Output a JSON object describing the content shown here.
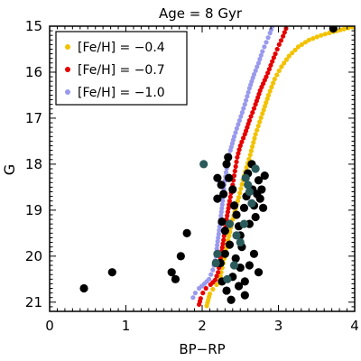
{
  "chart_data": {
    "type": "scatter",
    "title": "Age = 8 Gyr",
    "xlabel": "BP−RP",
    "ylabel": "G",
    "xlim": [
      0,
      4
    ],
    "ylim": [
      21.2,
      15
    ],
    "y_inverted": true,
    "x_ticks": [
      "0",
      "1",
      "2",
      "3",
      "4"
    ],
    "x_tick_values": [
      0,
      1,
      2,
      3,
      4
    ],
    "y_ticks": [
      "15",
      "16",
      "17",
      "18",
      "19",
      "20",
      "21"
    ],
    "y_tick_values": [
      15,
      16,
      17,
      18,
      19,
      20,
      21
    ],
    "legend_position": "top-left",
    "series": [
      {
        "name": "[Fe/H] = −0.4",
        "color": "#f2c200",
        "marker": "small-dot",
        "x": [
          2.06,
          2.08,
          2.1,
          2.14,
          2.19,
          2.23,
          2.25,
          2.29,
          2.34,
          2.4,
          2.48,
          2.55,
          2.63,
          2.7,
          2.79,
          2.87,
          2.95,
          3.04,
          3.14,
          3.26,
          3.4,
          3.56,
          3.72,
          3.86,
          3.97
        ],
        "y": [
          21.08,
          20.95,
          20.82,
          20.72,
          20.62,
          20.52,
          20.35,
          20.05,
          19.65,
          19.2,
          18.72,
          18.25,
          17.8,
          17.35,
          16.9,
          16.5,
          16.15,
          15.88,
          15.65,
          15.45,
          15.3,
          15.2,
          15.12,
          15.06,
          15.02
        ]
      },
      {
        "name": "[Fe/H] = −0.7",
        "color": "#e60000",
        "marker": "small-dot",
        "x": [
          1.96,
          1.98,
          2.01,
          2.05,
          2.11,
          2.17,
          2.21,
          2.24,
          2.28,
          2.32,
          2.36,
          2.4,
          2.43,
          2.46,
          2.5,
          2.56,
          2.62,
          2.7,
          2.76,
          2.84,
          2.9,
          2.96,
          3.01,
          3.06,
          3.1
        ],
        "y": [
          21.05,
          20.92,
          20.8,
          20.7,
          20.62,
          20.52,
          20.35,
          20.05,
          19.65,
          19.2,
          18.8,
          18.45,
          18.15,
          17.85,
          17.6,
          17.35,
          17.05,
          16.7,
          16.4,
          16.1,
          15.85,
          15.6,
          15.4,
          15.22,
          15.05
        ]
      },
      {
        "name": "[Fe/H] = −1.0",
        "color": "#9999ee",
        "marker": "small-dot",
        "x": [
          1.88,
          1.91,
          1.96,
          2.03,
          2.09,
          2.14,
          2.18,
          2.21,
          2.24,
          2.27,
          2.29,
          2.33,
          2.37,
          2.42,
          2.49,
          2.56,
          2.62,
          2.68,
          2.74,
          2.79,
          2.84,
          2.89,
          2.92
        ],
        "y": [
          20.9,
          20.8,
          20.7,
          20.6,
          20.5,
          20.3,
          20.0,
          19.6,
          19.2,
          18.8,
          18.45,
          18.0,
          17.7,
          17.4,
          17.05,
          16.7,
          16.35,
          16.05,
          15.8,
          15.55,
          15.35,
          15.15,
          15.0
        ]
      },
      {
        "color": "#000000",
        "marker": "large-dot",
        "x": [
          0.45,
          0.82,
          1.6,
          1.65,
          1.72,
          1.8,
          2.2,
          2.25,
          2.28,
          2.32,
          2.35,
          2.4,
          2.42,
          2.45,
          2.48,
          2.5,
          2.52,
          2.55,
          2.58,
          2.6,
          2.62,
          2.65,
          2.66,
          2.68,
          2.7,
          2.72,
          2.74,
          2.76,
          2.78,
          2.8,
          2.82,
          2.26,
          2.3,
          2.36,
          2.44,
          2.5,
          2.56,
          2.62,
          2.68,
          2.74,
          2.26,
          2.32,
          2.38,
          2.24,
          2.3,
          2.2,
          2.34,
          2.4,
          3.72,
          2.48,
          2.56
        ],
        "y": [
          20.7,
          20.35,
          20.35,
          20.5,
          20.0,
          19.5,
          18.3,
          18.45,
          18.65,
          18.0,
          18.3,
          18.55,
          18.9,
          19.1,
          19.35,
          19.55,
          19.8,
          18.95,
          18.7,
          18.2,
          19.3,
          18.0,
          18.55,
          18.9,
          19.15,
          18.65,
          18.35,
          18.75,
          18.55,
          18.95,
          18.25,
          19.25,
          19.45,
          19.75,
          20.05,
          20.25,
          20.55,
          20.2,
          19.95,
          20.35,
          20.55,
          20.75,
          20.95,
          20.15,
          19.95,
          18.75,
          17.85,
          20.45,
          15.05,
          20.65,
          20.85
        ]
      },
      {
        "color": "#2a5a5a",
        "marker": "large-dot",
        "x": [
          2.02,
          2.2,
          2.33,
          2.36,
          2.45,
          2.55,
          2.6,
          2.62,
          2.65,
          2.7,
          2.42,
          2.5,
          2.18,
          2.57
        ],
        "y": [
          18.0,
          19.95,
          20.5,
          19.3,
          19.55,
          19.3,
          18.45,
          18.6,
          18.85,
          18.1,
          20.2,
          19.7,
          20.15,
          18.3
        ]
      }
    ]
  }
}
